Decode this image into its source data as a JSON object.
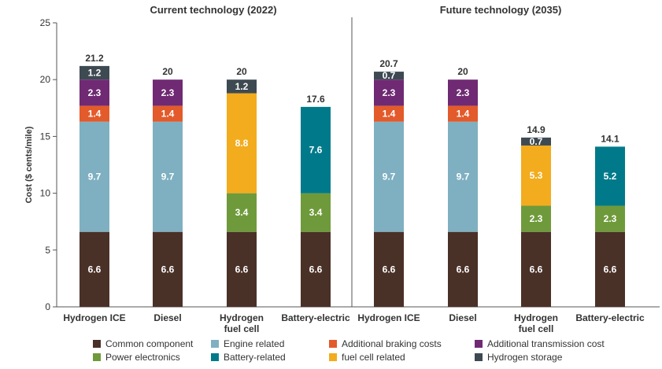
{
  "chart_data": {
    "type": "bar",
    "stacked": true,
    "ylabel": "Cost ($ cents/mile)",
    "ylim": [
      0,
      25
    ],
    "yticks": [
      0,
      5,
      10,
      15,
      20,
      25
    ],
    "grid": false,
    "legend_position": "bottom",
    "panels": [
      {
        "title": "Current technology (2022)",
        "categories": [
          [
            "Hydrogen ICE"
          ],
          [
            "Diesel"
          ],
          [
            "Hydrogen",
            "fuel cell"
          ],
          [
            "Battery-electric"
          ]
        ],
        "totals": [
          "21.2",
          "20",
          "20",
          "17.6"
        ]
      },
      {
        "title": "Future technology (2035)",
        "categories": [
          [
            "Hydrogen ICE"
          ],
          [
            "Diesel"
          ],
          [
            "Hydrogen",
            "fuel cell"
          ],
          [
            "Battery-electric"
          ]
        ],
        "totals": [
          "20.7",
          "20",
          "14.9",
          "14.1"
        ]
      }
    ],
    "series": [
      {
        "name": "Common component",
        "color": "#4a3128",
        "panels": [
          [
            6.6,
            6.6,
            6.6,
            6.6
          ],
          [
            6.6,
            6.6,
            6.6,
            6.6
          ]
        ]
      },
      {
        "name": "Power electronics",
        "color": "#6f9a3b",
        "panels": [
          [
            0,
            0,
            3.4,
            3.4
          ],
          [
            0,
            0,
            2.3,
            2.3
          ]
        ]
      },
      {
        "name": "Engine related",
        "color": "#7fb0c1",
        "panels": [
          [
            9.7,
            9.7,
            0,
            0
          ],
          [
            9.7,
            9.7,
            0,
            0
          ]
        ]
      },
      {
        "name": "Battery-related",
        "color": "#007a8a",
        "panels": [
          [
            0,
            0,
            0,
            7.6
          ],
          [
            0,
            0,
            0,
            5.2
          ]
        ]
      },
      {
        "name": "fuel cell related",
        "color": "#f2ac1e",
        "panels": [
          [
            0,
            0,
            8.8,
            0
          ],
          [
            0,
            0,
            5.3,
            0
          ]
        ]
      },
      {
        "name": "Additional braking costs",
        "color": "#e35a2b",
        "panels": [
          [
            1.4,
            1.4,
            0,
            0
          ],
          [
            1.4,
            1.4,
            0,
            0
          ]
        ]
      },
      {
        "name": "Additional transmission cost",
        "color": "#6f2a73",
        "panels": [
          [
            2.3,
            2.3,
            0,
            0
          ],
          [
            2.3,
            2.3,
            0,
            0
          ]
        ]
      },
      {
        "name": "Hydrogen storage",
        "color": "#3e4a52",
        "panels": [
          [
            1.2,
            0,
            1.2,
            0
          ],
          [
            0.7,
            0,
            0.7,
            0
          ]
        ]
      }
    ],
    "legend_order": [
      "Common component",
      "Engine related",
      "Additional braking costs",
      "Additional transmission cost",
      "Power electronics",
      "Battery-related",
      "fuel cell related",
      "Hydrogen storage"
    ]
  }
}
